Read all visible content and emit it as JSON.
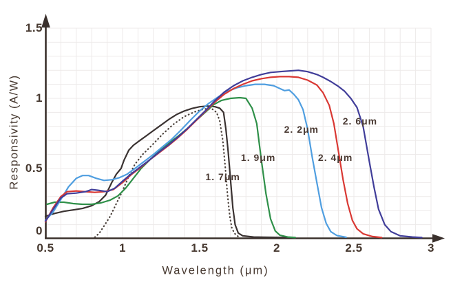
{
  "chart_data": {
    "type": "line",
    "title": "",
    "xlabel": "Wavelength (μm)",
    "ylabel": "Responsivity (A/W)",
    "xlim": [
      0.5,
      3.0
    ],
    "ylim": [
      0,
      1.5
    ],
    "grid": {
      "show": true,
      "step_x": 0.1,
      "step_y": 0.1,
      "color": "#edeae9"
    },
    "axis_color": "#3a302c",
    "text_color": "#46382f",
    "background_color": "#ffffff",
    "x_ticks": [
      {
        "value": 0.5,
        "label": "0.5"
      },
      {
        "value": 1.0,
        "label": "1"
      },
      {
        "value": 1.5,
        "label": "1.5"
      },
      {
        "value": 2.0,
        "label": "2"
      },
      {
        "value": 2.5,
        "label": "2.5"
      },
      {
        "value": 3.0,
        "label": "3"
      }
    ],
    "y_ticks": [
      {
        "value": 0,
        "label": "0"
      },
      {
        "value": 0.5,
        "label": "0.5"
      },
      {
        "value": 1.0,
        "label": "1"
      },
      {
        "value": 1.5,
        "label": "1.5"
      }
    ],
    "annotations": [
      {
        "text": "1. 7μm",
        "x": 1.65,
        "y": 0.44
      },
      {
        "text": "1. 9μm",
        "x": 1.88,
        "y": 0.58
      },
      {
        "text": "2. 2μm",
        "x": 2.16,
        "y": 0.78
      },
      {
        "text": "2. 4μm",
        "x": 2.38,
        "y": 0.58
      },
      {
        "text": "2. 6μm",
        "x": 2.54,
        "y": 0.84
      }
    ],
    "series": [
      {
        "id": "series-1-7um",
        "name": "1.7μm",
        "color": "#3a3231",
        "style": "solid",
        "points": [
          [
            0.5,
            0.16
          ],
          [
            0.56,
            0.18
          ],
          [
            0.62,
            0.195
          ],
          [
            0.68,
            0.205
          ],
          [
            0.74,
            0.215
          ],
          [
            0.8,
            0.235
          ],
          [
            0.85,
            0.265
          ],
          [
            0.89,
            0.31
          ],
          [
            0.93,
            0.4
          ],
          [
            0.96,
            0.46
          ],
          [
            0.99,
            0.5
          ],
          [
            1.01,
            0.56
          ],
          [
            1.04,
            0.63
          ],
          [
            1.07,
            0.665
          ],
          [
            1.1,
            0.69
          ],
          [
            1.15,
            0.73
          ],
          [
            1.2,
            0.77
          ],
          [
            1.25,
            0.81
          ],
          [
            1.3,
            0.85
          ],
          [
            1.35,
            0.885
          ],
          [
            1.4,
            0.91
          ],
          [
            1.45,
            0.928
          ],
          [
            1.5,
            0.94
          ],
          [
            1.55,
            0.945
          ],
          [
            1.6,
            0.94
          ],
          [
            1.63,
            0.93
          ],
          [
            1.655,
            0.9
          ],
          [
            1.67,
            0.78
          ],
          [
            1.685,
            0.62
          ],
          [
            1.7,
            0.42
          ],
          [
            1.715,
            0.22
          ],
          [
            1.73,
            0.1
          ],
          [
            1.75,
            0.04
          ],
          [
            1.78,
            0.02
          ],
          [
            1.85,
            0.012
          ],
          [
            1.95,
            0.01
          ],
          [
            2.08,
            0.008
          ]
        ]
      },
      {
        "id": "series-dotted",
        "name": "dotted (unlabeled)",
        "color": "#4c423c",
        "style": "dotted",
        "points": [
          [
            0.82,
            0.01
          ],
          [
            0.85,
            0.04
          ],
          [
            0.88,
            0.09
          ],
          [
            0.92,
            0.16
          ],
          [
            0.96,
            0.25
          ],
          [
            1.0,
            0.34
          ],
          [
            1.04,
            0.445
          ],
          [
            1.08,
            0.53
          ],
          [
            1.13,
            0.6
          ],
          [
            1.19,
            0.665
          ],
          [
            1.26,
            0.745
          ],
          [
            1.33,
            0.815
          ],
          [
            1.4,
            0.87
          ],
          [
            1.47,
            0.905
          ],
          [
            1.53,
            0.925
          ],
          [
            1.58,
            0.925
          ],
          [
            1.61,
            0.9
          ],
          [
            1.63,
            0.84
          ],
          [
            1.65,
            0.7
          ],
          [
            1.665,
            0.52
          ],
          [
            1.68,
            0.32
          ],
          [
            1.695,
            0.16
          ],
          [
            1.71,
            0.07
          ],
          [
            1.735,
            0.025
          ],
          [
            1.76,
            0.01
          ]
        ]
      },
      {
        "id": "series-1-9um",
        "name": "1.9μm",
        "color": "#2f9049",
        "style": "solid",
        "points": [
          [
            0.51,
            0.245
          ],
          [
            0.56,
            0.26
          ],
          [
            0.62,
            0.26
          ],
          [
            0.68,
            0.25
          ],
          [
            0.74,
            0.245
          ],
          [
            0.8,
            0.245
          ],
          [
            0.86,
            0.255
          ],
          [
            0.92,
            0.275
          ],
          [
            0.97,
            0.305
          ],
          [
            1.02,
            0.36
          ],
          [
            1.07,
            0.43
          ],
          [
            1.12,
            0.5
          ],
          [
            1.18,
            0.565
          ],
          [
            1.24,
            0.625
          ],
          [
            1.3,
            0.68
          ],
          [
            1.36,
            0.73
          ],
          [
            1.42,
            0.785
          ],
          [
            1.48,
            0.845
          ],
          [
            1.54,
            0.905
          ],
          [
            1.59,
            0.955
          ],
          [
            1.64,
            0.985
          ],
          [
            1.7,
            1.0
          ],
          [
            1.76,
            1.005
          ],
          [
            1.8,
            1.0
          ],
          [
            1.84,
            0.93
          ],
          [
            1.87,
            0.82
          ],
          [
            1.9,
            0.56
          ],
          [
            1.93,
            0.32
          ],
          [
            1.96,
            0.14
          ],
          [
            1.99,
            0.055
          ],
          [
            2.02,
            0.025
          ],
          [
            2.07,
            0.012
          ],
          [
            2.12,
            0.008
          ]
        ]
      },
      {
        "id": "series-2-2um",
        "name": "2.2μm",
        "color": "#4f9ee0",
        "style": "solid",
        "points": [
          [
            0.5,
            0.13
          ],
          [
            0.55,
            0.19
          ],
          [
            0.6,
            0.28
          ],
          [
            0.65,
            0.37
          ],
          [
            0.7,
            0.43
          ],
          [
            0.74,
            0.45
          ],
          [
            0.78,
            0.45
          ],
          [
            0.83,
            0.43
          ],
          [
            0.88,
            0.415
          ],
          [
            0.93,
            0.42
          ],
          [
            0.98,
            0.435
          ],
          [
            1.03,
            0.46
          ],
          [
            1.08,
            0.5
          ],
          [
            1.14,
            0.55
          ],
          [
            1.2,
            0.6
          ],
          [
            1.26,
            0.655
          ],
          [
            1.32,
            0.71
          ],
          [
            1.38,
            0.775
          ],
          [
            1.44,
            0.845
          ],
          [
            1.5,
            0.91
          ],
          [
            1.56,
            0.965
          ],
          [
            1.62,
            1.01
          ],
          [
            1.68,
            1.05
          ],
          [
            1.74,
            1.075
          ],
          [
            1.8,
            1.09
          ],
          [
            1.86,
            1.1
          ],
          [
            1.92,
            1.1
          ],
          [
            1.98,
            1.09
          ],
          [
            2.02,
            1.07
          ],
          [
            2.05,
            1.055
          ],
          [
            2.08,
            1.06
          ],
          [
            2.11,
            1.03
          ],
          [
            2.14,
            0.99
          ],
          [
            2.17,
            0.92
          ],
          [
            2.2,
            0.78
          ],
          [
            2.23,
            0.58
          ],
          [
            2.26,
            0.4
          ],
          [
            2.29,
            0.22
          ],
          [
            2.32,
            0.11
          ],
          [
            2.35,
            0.05
          ],
          [
            2.39,
            0.022
          ],
          [
            2.45,
            0.01
          ]
        ]
      },
      {
        "id": "series-2-4um",
        "name": "2.4μm",
        "color": "#d93833",
        "style": "solid",
        "points": [
          [
            0.5,
            0.12
          ],
          [
            0.55,
            0.22
          ],
          [
            0.6,
            0.3
          ],
          [
            0.64,
            0.335
          ],
          [
            0.7,
            0.34
          ],
          [
            0.76,
            0.335
          ],
          [
            0.82,
            0.33
          ],
          [
            0.88,
            0.335
          ],
          [
            0.94,
            0.35
          ],
          [
            1.0,
            0.4
          ],
          [
            1.06,
            0.46
          ],
          [
            1.12,
            0.51
          ],
          [
            1.18,
            0.565
          ],
          [
            1.24,
            0.615
          ],
          [
            1.3,
            0.665
          ],
          [
            1.36,
            0.72
          ],
          [
            1.42,
            0.78
          ],
          [
            1.48,
            0.845
          ],
          [
            1.54,
            0.91
          ],
          [
            1.6,
            0.975
          ],
          [
            1.66,
            1.03
          ],
          [
            1.72,
            1.07
          ],
          [
            1.78,
            1.1
          ],
          [
            1.84,
            1.125
          ],
          [
            1.9,
            1.14
          ],
          [
            1.96,
            1.15
          ],
          [
            2.02,
            1.155
          ],
          [
            2.08,
            1.155
          ],
          [
            2.14,
            1.15
          ],
          [
            2.2,
            1.13
          ],
          [
            2.26,
            1.095
          ],
          [
            2.3,
            1.04
          ],
          [
            2.34,
            0.95
          ],
          [
            2.37,
            0.82
          ],
          [
            2.4,
            0.62
          ],
          [
            2.43,
            0.42
          ],
          [
            2.46,
            0.25
          ],
          [
            2.49,
            0.13
          ],
          [
            2.52,
            0.07
          ],
          [
            2.56,
            0.035
          ],
          [
            2.62,
            0.015
          ],
          [
            2.68,
            0.008
          ]
        ]
      },
      {
        "id": "series-2-6um",
        "name": "2.6μm",
        "color": "#403d99",
        "style": "solid",
        "points": [
          [
            0.5,
            0.125
          ],
          [
            0.55,
            0.21
          ],
          [
            0.6,
            0.29
          ],
          [
            0.64,
            0.32
          ],
          [
            0.7,
            0.325
          ],
          [
            0.76,
            0.335
          ],
          [
            0.8,
            0.35
          ],
          [
            0.84,
            0.345
          ],
          [
            0.9,
            0.335
          ],
          [
            0.95,
            0.36
          ],
          [
            1.0,
            0.41
          ],
          [
            1.06,
            0.465
          ],
          [
            1.12,
            0.515
          ],
          [
            1.18,
            0.565
          ],
          [
            1.24,
            0.62
          ],
          [
            1.3,
            0.67
          ],
          [
            1.36,
            0.725
          ],
          [
            1.42,
            0.785
          ],
          [
            1.48,
            0.85
          ],
          [
            1.54,
            0.915
          ],
          [
            1.6,
            0.985
          ],
          [
            1.66,
            1.045
          ],
          [
            1.72,
            1.09
          ],
          [
            1.78,
            1.125
          ],
          [
            1.84,
            1.15
          ],
          [
            1.9,
            1.17
          ],
          [
            1.96,
            1.185
          ],
          [
            2.02,
            1.19
          ],
          [
            2.08,
            1.195
          ],
          [
            2.14,
            1.2
          ],
          [
            2.2,
            1.19
          ],
          [
            2.26,
            1.17
          ],
          [
            2.3,
            1.15
          ],
          [
            2.35,
            1.12
          ],
          [
            2.4,
            1.085
          ],
          [
            2.44,
            1.05
          ],
          [
            2.48,
            1.0
          ],
          [
            2.52,
            0.935
          ],
          [
            2.56,
            0.8
          ],
          [
            2.6,
            0.55
          ],
          [
            2.63,
            0.37
          ],
          [
            2.66,
            0.21
          ],
          [
            2.7,
            0.1
          ],
          [
            2.74,
            0.05
          ],
          [
            2.8,
            0.02
          ],
          [
            2.88,
            0.012
          ],
          [
            2.94,
            0.008
          ]
        ]
      }
    ]
  }
}
